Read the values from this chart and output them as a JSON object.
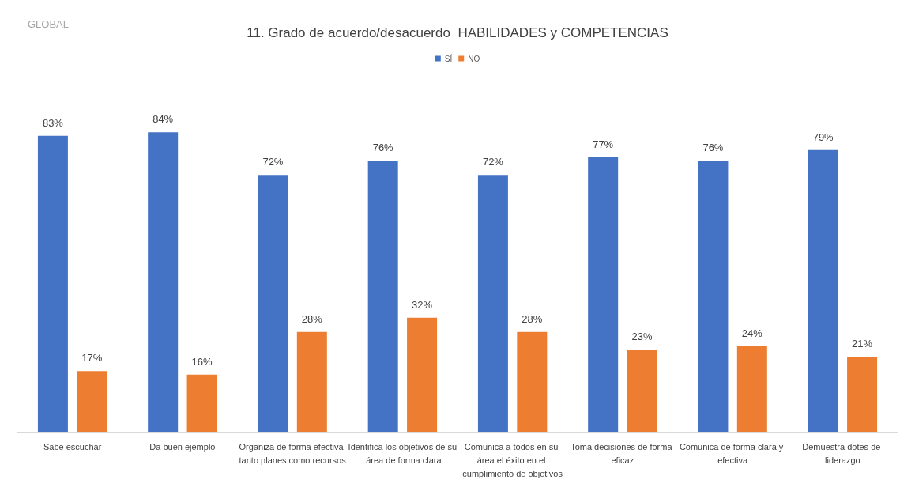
{
  "chart_data": {
    "type": "bar",
    "title": "11. Grado de acuerdo/desacuerdo  HABILIDADES y COMPETENCIAS",
    "annotations": [
      "GLOBAL"
    ],
    "categories": [
      "Sabe escuchar",
      "Da buen ejemplo",
      "Organiza de forma efectiva tanto planes como recursos",
      "Identifica los objetivos de su área de forma clara",
      "Comunica a todos en su área el éxito en el cumplimiento de objetivos",
      "Toma decisiones de forma eficaz",
      "Comunica de forma clara y efectiva",
      "Demuestra dotes de liderazgo"
    ],
    "series": [
      {
        "name": "SÍ",
        "color": "#4472c4",
        "values": [
          83,
          84,
          72,
          76,
          72,
          77,
          76,
          79
        ],
        "value_labels": [
          "83%",
          "84%",
          "72%",
          "76%",
          "72%",
          "77%",
          "76%",
          "79%"
        ]
      },
      {
        "name": "NO",
        "color": "#ed7d31",
        "values": [
          17,
          16,
          28,
          32,
          28,
          23,
          24,
          21
        ],
        "value_labels": [
          "17%",
          "16%",
          "28%",
          "32%",
          "28%",
          "23%",
          "24%",
          "21%"
        ]
      }
    ],
    "legend": "top"
  }
}
